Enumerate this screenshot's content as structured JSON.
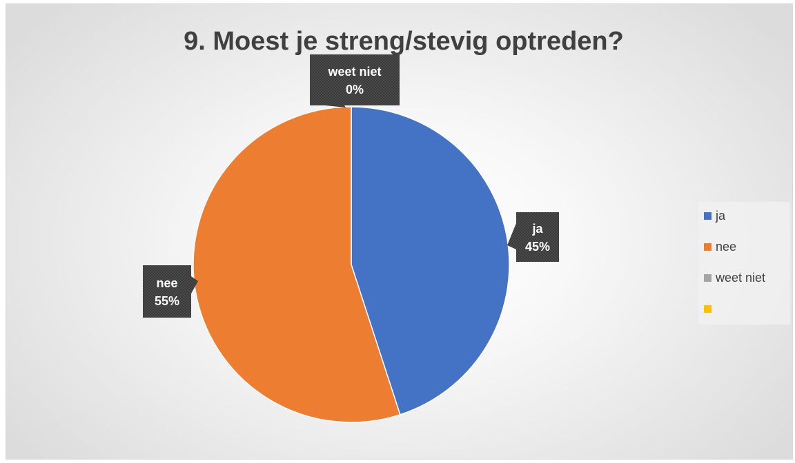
{
  "chart_data": {
    "type": "pie",
    "title": "9. Moest je streng/stevig optreden?",
    "categories": [
      "ja",
      "nee",
      "weet niet",
      ""
    ],
    "values": [
      45,
      55,
      0,
      0
    ],
    "value_labels": [
      "45%",
      "55%",
      "0%",
      ""
    ],
    "colors": [
      "#4472C4",
      "#ED7D31",
      "#A5A5A5",
      "#FFC000"
    ],
    "legend_position": "right",
    "data_labels": "category and percentage"
  }
}
